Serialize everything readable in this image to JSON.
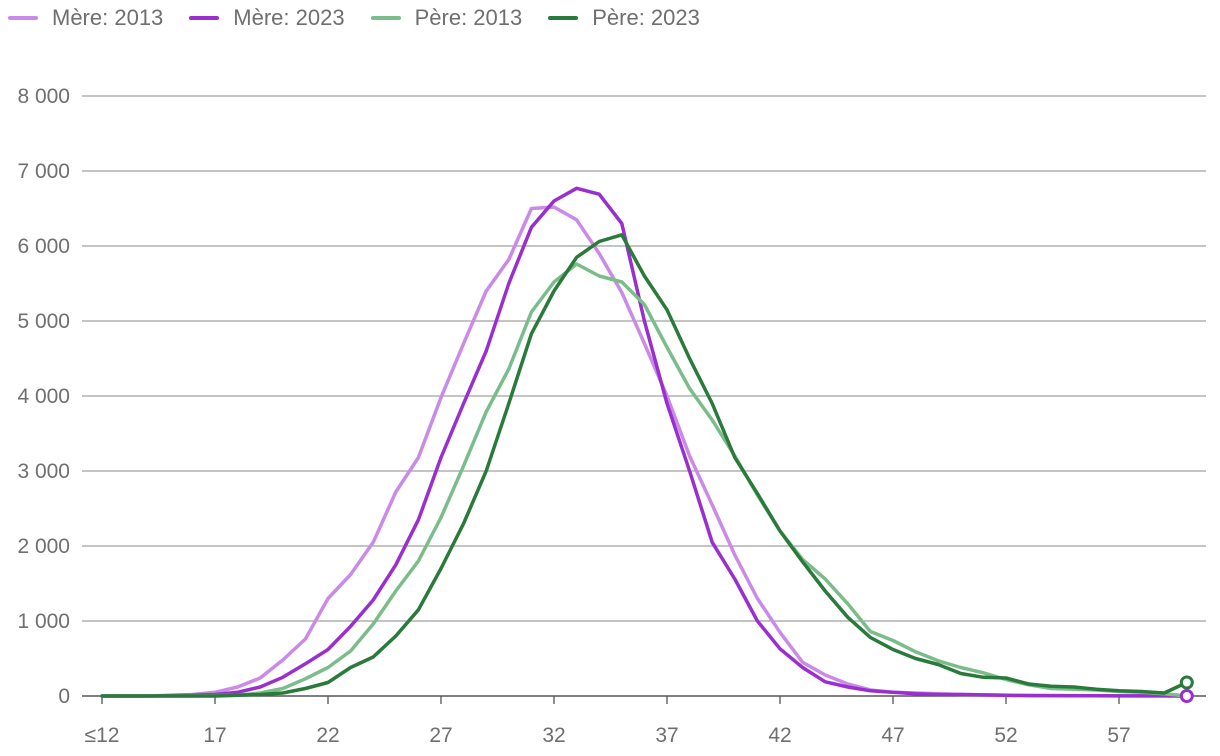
{
  "chart_data": {
    "type": "line",
    "title": "",
    "xlabel": "",
    "ylabel": "",
    "x": [
      12,
      13,
      14,
      15,
      16,
      17,
      18,
      19,
      20,
      21,
      22,
      23,
      24,
      25,
      26,
      27,
      28,
      29,
      30,
      31,
      32,
      33,
      34,
      35,
      36,
      37,
      38,
      39,
      40,
      41,
      42,
      43,
      44,
      45,
      46,
      47,
      48,
      49,
      50,
      51,
      52,
      53,
      54,
      55,
      56,
      57,
      58,
      59,
      60
    ],
    "x_tick_values": [
      12,
      17,
      22,
      27,
      32,
      37,
      42,
      47,
      52,
      57
    ],
    "x_tick_labels": [
      "≤12",
      "17",
      "22",
      "27",
      "32",
      "37",
      "42",
      "47",
      "52",
      "57"
    ],
    "ylim": [
      0,
      8000
    ],
    "y_ticks": [
      0,
      1000,
      2000,
      3000,
      4000,
      5000,
      6000,
      7000,
      8000
    ],
    "y_tick_labels": [
      "0",
      "1 000",
      "2 000",
      "3 000",
      "4 000",
      "5 000",
      "6 000",
      "7 000",
      "8 000"
    ],
    "grid": true,
    "legend": "top-left",
    "series": [
      {
        "name": "Mère: 2013",
        "color": "#c98ae8",
        "values": [
          0,
          0,
          0,
          10,
          20,
          50,
          120,
          240,
          480,
          760,
          1300,
          1620,
          2050,
          2720,
          3180,
          3980,
          4700,
          5400,
          5820,
          6500,
          6520,
          6350,
          5900,
          5380,
          4700,
          4000,
          3200,
          2550,
          1880,
          1300,
          850,
          450,
          280,
          160,
          80,
          50,
          40,
          30,
          20,
          15,
          10,
          8,
          5,
          5,
          3,
          3,
          2,
          2,
          0
        ]
      },
      {
        "name": "Mère: 2023",
        "color": "#9a2fd0",
        "values": [
          0,
          0,
          0,
          5,
          10,
          20,
          50,
          120,
          250,
          430,
          620,
          930,
          1280,
          1750,
          2350,
          3180,
          3900,
          4600,
          5500,
          6250,
          6600,
          6770,
          6690,
          6300,
          5000,
          3900,
          3000,
          2050,
          1560,
          1000,
          630,
          380,
          190,
          120,
          70,
          50,
          30,
          20,
          20,
          15,
          10,
          5,
          5,
          3,
          3,
          2,
          2,
          2,
          0
        ]
      },
      {
        "name": "Père: 2013",
        "color": "#7bbd8a",
        "values": [
          0,
          0,
          0,
          0,
          0,
          5,
          10,
          40,
          100,
          230,
          380,
          600,
          960,
          1400,
          1800,
          2380,
          3070,
          3790,
          4360,
          5120,
          5520,
          5760,
          5600,
          5520,
          5220,
          4650,
          4100,
          3680,
          3200,
          2680,
          2200,
          1820,
          1560,
          1230,
          860,
          740,
          590,
          470,
          380,
          310,
          220,
          150,
          100,
          90,
          80,
          60,
          50,
          30,
          0
        ]
      },
      {
        "name": "Père: 2023",
        "color": "#2a7a3b",
        "values": [
          0,
          0,
          0,
          0,
          0,
          0,
          10,
          20,
          40,
          100,
          180,
          380,
          520,
          800,
          1150,
          1700,
          2300,
          3000,
          3900,
          4830,
          5400,
          5850,
          6060,
          6150,
          5600,
          5150,
          4500,
          3900,
          3180,
          2700,
          2200,
          1790,
          1400,
          1050,
          780,
          620,
          500,
          420,
          300,
          250,
          240,
          160,
          130,
          120,
          90,
          70,
          60,
          40,
          180
        ]
      }
    ]
  }
}
